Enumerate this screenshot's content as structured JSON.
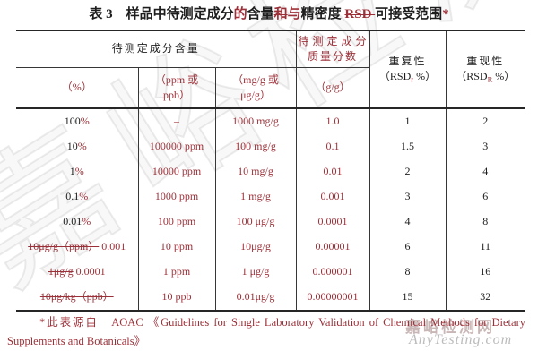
{
  "colors": {
    "red": "#9c3038",
    "black": "#1d1d1d",
    "rule": "#262626",
    "watermark_gray": "#bcbcbc"
  },
  "title": {
    "runs": [
      {
        "text": "表 3　样品中待测定成分",
        "color": "black"
      },
      {
        "text": "的",
        "color": "red"
      },
      {
        "text": "含量",
        "color": "black"
      },
      {
        "text": "和",
        "color": "red",
        "strike": true
      },
      {
        "text": "与",
        "color": "red"
      },
      {
        "text": "精密度 ",
        "color": "black"
      },
      {
        "text": "RSD ",
        "color": "red",
        "strike": true
      },
      {
        "text": "可接受范围",
        "color": "black"
      },
      {
        "text": "*",
        "color": "red"
      }
    ]
  },
  "table": {
    "header": {
      "analyte_content_group": "待测定成分含量",
      "mass_fraction_line1": [
        {
          "text": "待测定成分",
          "color": "red"
        }
      ],
      "mass_fraction_line2": [
        {
          "text": "质量分数",
          "color": "red"
        }
      ],
      "repeatability_line1": [
        {
          "text": "重复性",
          "color": "black"
        }
      ],
      "repeatability_line2": [
        {
          "text": "（RSD",
          "color": "black"
        },
        {
          "text": "r",
          "color": "red",
          "sub": true
        },
        {
          "text": " %）",
          "color": "black"
        }
      ],
      "reproducibility_line1": [
        {
          "text": "重现性",
          "color": "black"
        }
      ],
      "reproducibility_line2": [
        {
          "text": "（RSD",
          "color": "black"
        },
        {
          "text": "R",
          "color": "red",
          "sub": true
        },
        {
          "text": " %）",
          "color": "black"
        }
      ],
      "sub_percent": [
        {
          "text": "（%）",
          "color": "red"
        }
      ],
      "sub_ppm_line1": [
        {
          "text": "（ppm 或",
          "color": "red"
        }
      ],
      "sub_ppm_line2": [
        {
          "text": "ppb）",
          "color": "red"
        }
      ],
      "sub_mg_line1": [
        {
          "text": "（mg/g 或",
          "color": "red"
        }
      ],
      "sub_mg_line2": [
        {
          "text": "μg/g）",
          "color": "red"
        }
      ],
      "sub_gg": [
        {
          "text": "（g/g）",
          "color": "red"
        }
      ]
    },
    "rows": [
      {
        "cells": [
          [
            {
              "text": "100",
              "color": "black"
            },
            {
              "text": "%",
              "color": "red"
            }
          ],
          [
            {
              "text": "–",
              "color": "red"
            }
          ],
          [
            {
              "text": "1000 mg/g",
              "color": "red"
            }
          ],
          [
            {
              "text": "1.0",
              "color": "red"
            }
          ],
          [
            {
              "text": "1",
              "color": "black"
            }
          ],
          [
            {
              "text": "2",
              "color": "black"
            }
          ]
        ]
      },
      {
        "cells": [
          [
            {
              "text": "10",
              "color": "black"
            },
            {
              "text": "%",
              "color": "red"
            }
          ],
          [
            {
              "text": "100000 ppm",
              "color": "red"
            }
          ],
          [
            {
              "text": "100 mg/g",
              "color": "red"
            }
          ],
          [
            {
              "text": "0.1",
              "color": "red"
            }
          ],
          [
            {
              "text": "1.5",
              "color": "black"
            }
          ],
          [
            {
              "text": "3",
              "color": "black"
            }
          ]
        ]
      },
      {
        "cells": [
          [
            {
              "text": "1",
              "color": "black"
            },
            {
              "text": "%",
              "color": "red"
            }
          ],
          [
            {
              "text": "10000 ppm",
              "color": "red"
            }
          ],
          [
            {
              "text": "10 mg/g",
              "color": "red"
            }
          ],
          [
            {
              "text": "0.01",
              "color": "red"
            }
          ],
          [
            {
              "text": "2",
              "color": "black"
            }
          ],
          [
            {
              "text": "4",
              "color": "black"
            }
          ]
        ]
      },
      {
        "cells": [
          [
            {
              "text": "0.1",
              "color": "black"
            },
            {
              "text": "%",
              "color": "red"
            }
          ],
          [
            {
              "text": "1000 ppm",
              "color": "red"
            }
          ],
          [
            {
              "text": "1 mg/g",
              "color": "red"
            }
          ],
          [
            {
              "text": "0.001",
              "color": "red"
            }
          ],
          [
            {
              "text": "3",
              "color": "black"
            }
          ],
          [
            {
              "text": "6",
              "color": "black"
            }
          ]
        ]
      },
      {
        "cells": [
          [
            {
              "text": "0.01",
              "color": "black"
            },
            {
              "text": "%",
              "color": "red"
            }
          ],
          [
            {
              "text": "100 ppm",
              "color": "red"
            }
          ],
          [
            {
              "text": "100 μg/g",
              "color": "red"
            }
          ],
          [
            {
              "text": "0.0001",
              "color": "red"
            }
          ],
          [
            {
              "text": "4",
              "color": "black"
            }
          ],
          [
            {
              "text": "8",
              "color": "black"
            }
          ]
        ]
      },
      {
        "cells": [
          [
            {
              "text": "10μg/g（ppm）",
              "color": "red",
              "strike": true
            },
            {
              "text": " 0.001",
              "color": "red"
            }
          ],
          [
            {
              "text": "10 ppm",
              "color": "red"
            }
          ],
          [
            {
              "text": "10μg/g",
              "color": "red"
            }
          ],
          [
            {
              "text": "0.00001",
              "color": "red"
            }
          ],
          [
            {
              "text": "6",
              "color": "black"
            }
          ],
          [
            {
              "text": "11",
              "color": "black"
            }
          ]
        ]
      },
      {
        "cells": [
          [
            {
              "text": "1μg/g",
              "color": "red",
              "strike": true
            },
            {
              "text": " 0.0001",
              "color": "red"
            }
          ],
          [
            {
              "text": "1 ppm",
              "color": "red"
            }
          ],
          [
            {
              "text": "1 μg/g",
              "color": "red"
            }
          ],
          [
            {
              "text": "0.000001",
              "color": "red"
            }
          ],
          [
            {
              "text": "8",
              "color": "black"
            }
          ],
          [
            {
              "text": "16",
              "color": "black"
            }
          ]
        ]
      },
      {
        "cells": [
          [
            {
              "text": "10μg/kg（ppb）",
              "color": "red",
              "strike": true
            }
          ],
          [
            {
              "text": "10 ppb",
              "color": "red"
            }
          ],
          [
            {
              "text": "0.01μg/g",
              "color": "red"
            }
          ],
          [
            {
              "text": "0.00000001",
              "color": "red"
            }
          ],
          [
            {
              "text": "15",
              "color": "black"
            }
          ],
          [
            {
              "text": "32",
              "color": "black"
            }
          ]
        ]
      }
    ]
  },
  "footnote": {
    "runs": [
      {
        "text": "*此表源自　AOAC 《Guidelines for Single Laboratory Validation of Chemical Methods for Dietary Supplements and Botanicals》",
        "color": "red"
      }
    ]
  },
  "watermark": {
    "big_text": "嘉峪检测网",
    "site_cn": "嘉峪检测网",
    "site_en": "AnyTesting.com"
  }
}
